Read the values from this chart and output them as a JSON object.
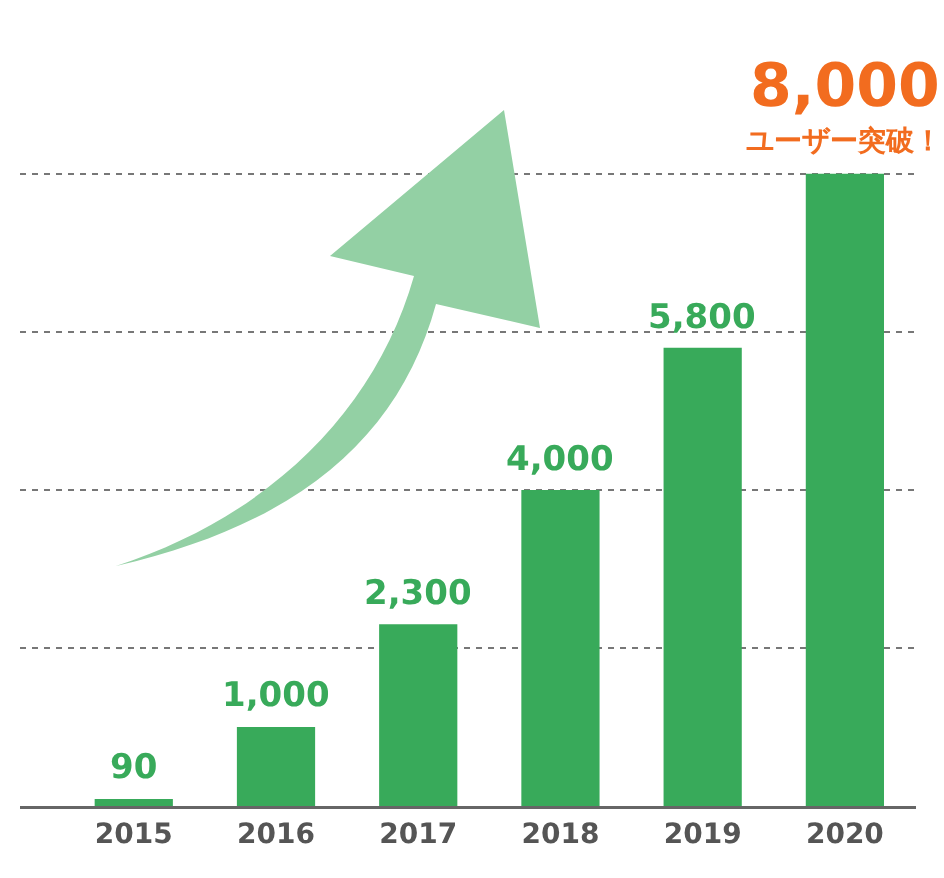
{
  "chart_data": {
    "type": "bar",
    "categories": [
      "2015",
      "2016",
      "2017",
      "2018",
      "2019",
      "2020"
    ],
    "values": [
      90,
      1000,
      2300,
      4000,
      5800,
      8000
    ],
    "value_labels": [
      "90",
      "1,000",
      "2,300",
      "4,000",
      "5,800",
      "8,000"
    ],
    "color": "#38aa5a",
    "ylim": [
      0,
      10200
    ],
    "yticks": [
      {
        "value": 2000,
        "label": null
      },
      {
        "value": 4000,
        "label": null
      },
      {
        "value": 6000,
        "label": null
      },
      {
        "value": 8000,
        "label": null
      }
    ],
    "grid": "y",
    "tick_labels": "x",
    "annotations": [
      {
        "text": "ユーザー突破！",
        "x": "2020",
        "y": 8000
      }
    ]
  }
}
